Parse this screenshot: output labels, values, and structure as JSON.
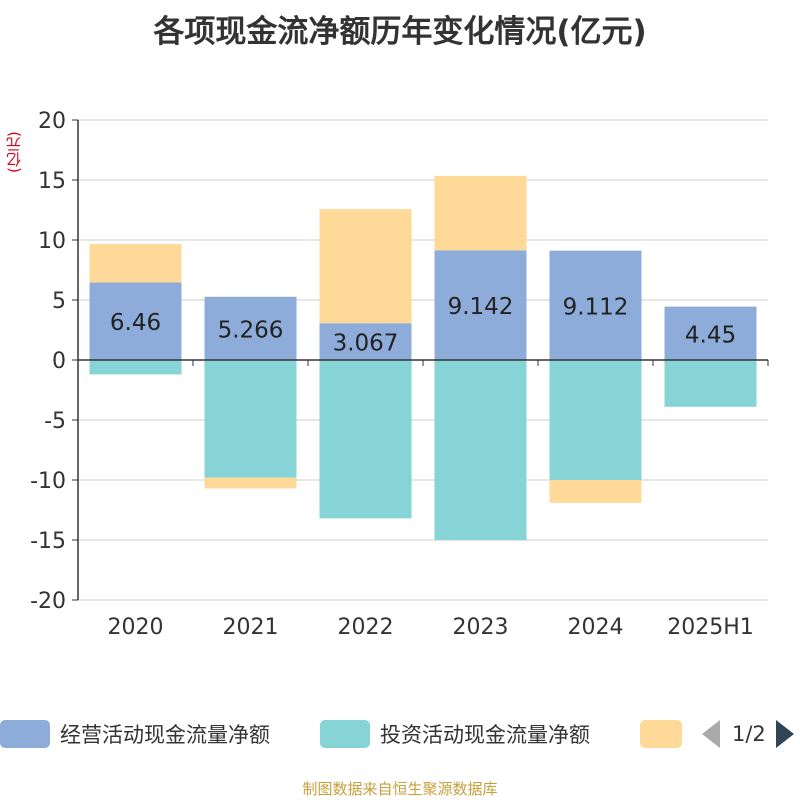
{
  "title": "各项现金流净额历年变化情况(亿元)",
  "unit_label": "(亿元)",
  "source": "制图数据来自恒生聚源数据库",
  "legend": {
    "items": [
      {
        "label": "经营活动现金流量净额",
        "color": "#8eacd9"
      },
      {
        "label": "投资活动现金流量净额",
        "color": "#87d4d6"
      },
      {
        "label": "",
        "color": "#ffd998"
      }
    ],
    "pager": "1/2"
  },
  "chart_data": {
    "type": "bar",
    "stacked": true,
    "categories": [
      "2020",
      "2021",
      "2022",
      "2023",
      "2024",
      "2025H1"
    ],
    "ylim": [
      -20,
      20
    ],
    "yticks": [
      20,
      15,
      10,
      5,
      0,
      -5,
      -10,
      -15,
      -20
    ],
    "grid": true,
    "legend_position": "bottom",
    "series": [
      {
        "name": "经营活动现金流量净额",
        "color": "#8eacd9",
        "values": [
          6.46,
          5.266,
          3.067,
          9.142,
          9.112,
          4.45
        ],
        "labels": [
          "6.46",
          "5.266",
          "3.067",
          "9.142",
          "9.112",
          "4.45"
        ]
      },
      {
        "name": "投资活动现金流量净额",
        "color": "#87d4d6",
        "values": [
          -1.2,
          -9.8,
          -13.2,
          -15.0,
          -10.0,
          -3.9
        ]
      },
      {
        "name": "",
        "color": "#ffd998",
        "values": [
          3.2,
          -0.9,
          9.5,
          6.2,
          -1.9,
          0
        ]
      }
    ]
  }
}
